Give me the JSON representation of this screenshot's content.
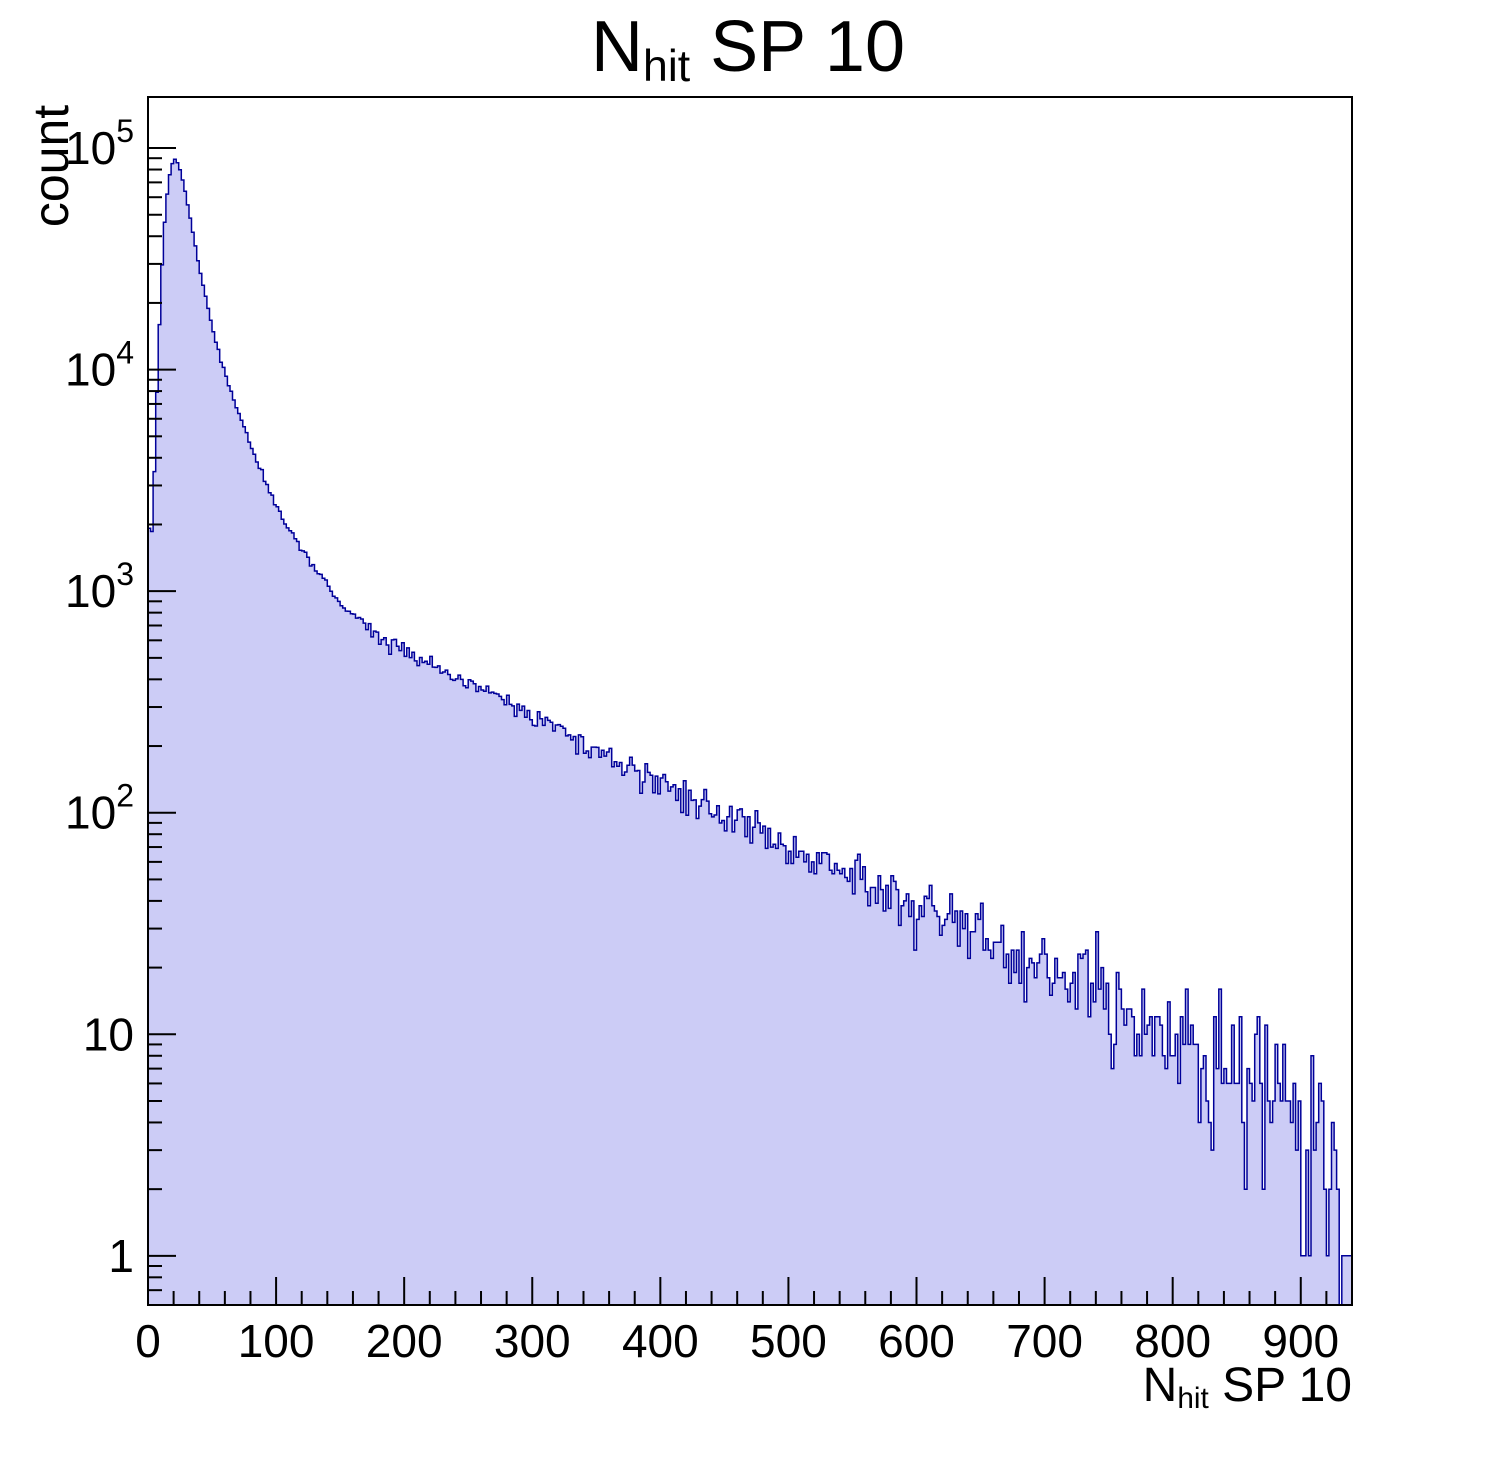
{
  "title": {
    "prefix": "N",
    "subscript": "hit",
    "suffix": " SP 10"
  },
  "y_axis": {
    "label": "count",
    "min": 0.6,
    "max": 170000,
    "scale": "log",
    "ticks": [
      {
        "v": 1,
        "m": "1",
        "e": ""
      },
      {
        "v": 10,
        "m": "10",
        "e": ""
      },
      {
        "v": 100,
        "m": "10",
        "e": "2"
      },
      {
        "v": 1000,
        "m": "10",
        "e": "3"
      },
      {
        "v": 10000,
        "m": "10",
        "e": "4"
      },
      {
        "v": 100000,
        "m": "10",
        "e": "5"
      }
    ]
  },
  "x_axis": {
    "label_prefix": "N",
    "label_subscript": "hit",
    "label_suffix": " SP 10",
    "min": 0,
    "max": 940,
    "major_ticks": [
      0,
      100,
      200,
      300,
      400,
      500,
      600,
      700,
      800,
      900
    ],
    "minor_step": 20
  },
  "style": {
    "fill": "#ccccf6",
    "line": "#000099",
    "frame": "#000000",
    "background": "#ffffff"
  },
  "chart_data": {
    "type": "bar",
    "subtype": "histogram",
    "title": "N_hit SP 10",
    "xlabel": "N_hit SP 10",
    "ylabel": "count",
    "y_scale": "log",
    "x_range": [
      0,
      940
    ],
    "y_range": [
      0.6,
      170000
    ],
    "bin_width": 2,
    "seed": 42,
    "peak": {
      "x": 20,
      "count": 90000
    },
    "anchors": [
      [
        0,
        2800
      ],
      [
        2,
        1400
      ],
      [
        5,
        3500
      ],
      [
        8,
        12000
      ],
      [
        12,
        40000
      ],
      [
        16,
        72000
      ],
      [
        20,
        90000
      ],
      [
        24,
        84000
      ],
      [
        28,
        68000
      ],
      [
        34,
        45000
      ],
      [
        40,
        29000
      ],
      [
        46,
        20000
      ],
      [
        52,
        14000
      ],
      [
        58,
        10500
      ],
      [
        64,
        8200
      ],
      [
        70,
        6500
      ],
      [
        76,
        5300
      ],
      [
        82,
        4300
      ],
      [
        88,
        3500
      ],
      [
        94,
        2900
      ],
      [
        100,
        2400
      ],
      [
        110,
        1900
      ],
      [
        120,
        1550
      ],
      [
        130,
        1270
      ],
      [
        140,
        1060
      ],
      [
        150,
        900
      ],
      [
        160,
        790
      ],
      [
        170,
        700
      ],
      [
        180,
        630
      ],
      [
        190,
        580
      ],
      [
        200,
        540
      ],
      [
        210,
        500
      ],
      [
        220,
        470
      ],
      [
        230,
        440
      ],
      [
        240,
        415
      ],
      [
        250,
        390
      ],
      [
        260,
        365
      ],
      [
        270,
        340
      ],
      [
        280,
        318
      ],
      [
        290,
        296
      ],
      [
        300,
        275
      ],
      [
        310,
        255
      ],
      [
        320,
        237
      ],
      [
        330,
        220
      ],
      [
        340,
        205
      ],
      [
        350,
        192
      ],
      [
        360,
        180
      ],
      [
        370,
        168
      ],
      [
        380,
        157
      ],
      [
        390,
        147
      ],
      [
        400,
        138
      ],
      [
        410,
        129
      ],
      [
        420,
        120
      ],
      [
        430,
        112
      ],
      [
        440,
        105
      ],
      [
        450,
        98
      ],
      [
        460,
        92
      ],
      [
        470,
        86
      ],
      [
        480,
        80
      ],
      [
        490,
        75
      ],
      [
        500,
        70
      ],
      [
        510,
        65
      ],
      [
        520,
        61
      ],
      [
        530,
        57
      ],
      [
        540,
        53
      ],
      [
        550,
        50
      ],
      [
        560,
        47
      ],
      [
        570,
        44
      ],
      [
        580,
        42
      ],
      [
        590,
        40
      ],
      [
        600,
        39
      ],
      [
        610,
        37
      ],
      [
        620,
        35
      ],
      [
        630,
        33
      ],
      [
        640,
        31
      ],
      [
        650,
        29
      ],
      [
        660,
        27
      ],
      [
        670,
        25
      ],
      [
        680,
        23
      ],
      [
        690,
        21
      ],
      [
        700,
        20
      ],
      [
        710,
        19
      ],
      [
        720,
        18
      ],
      [
        730,
        17
      ],
      [
        740,
        16
      ],
      [
        750,
        15
      ],
      [
        760,
        14
      ],
      [
        770,
        13
      ],
      [
        780,
        12.2
      ],
      [
        790,
        11.4
      ],
      [
        800,
        10.6
      ],
      [
        810,
        10
      ],
      [
        820,
        9.4
      ],
      [
        830,
        8.8
      ],
      [
        840,
        8.2
      ],
      [
        850,
        7.6
      ],
      [
        860,
        7
      ],
      [
        870,
        6.4
      ],
      [
        880,
        5.8
      ],
      [
        890,
        5.2
      ],
      [
        900,
        4.5
      ],
      [
        910,
        3.6
      ],
      [
        920,
        2.6
      ],
      [
        930,
        1.6
      ],
      [
        940,
        1.0
      ]
    ]
  }
}
